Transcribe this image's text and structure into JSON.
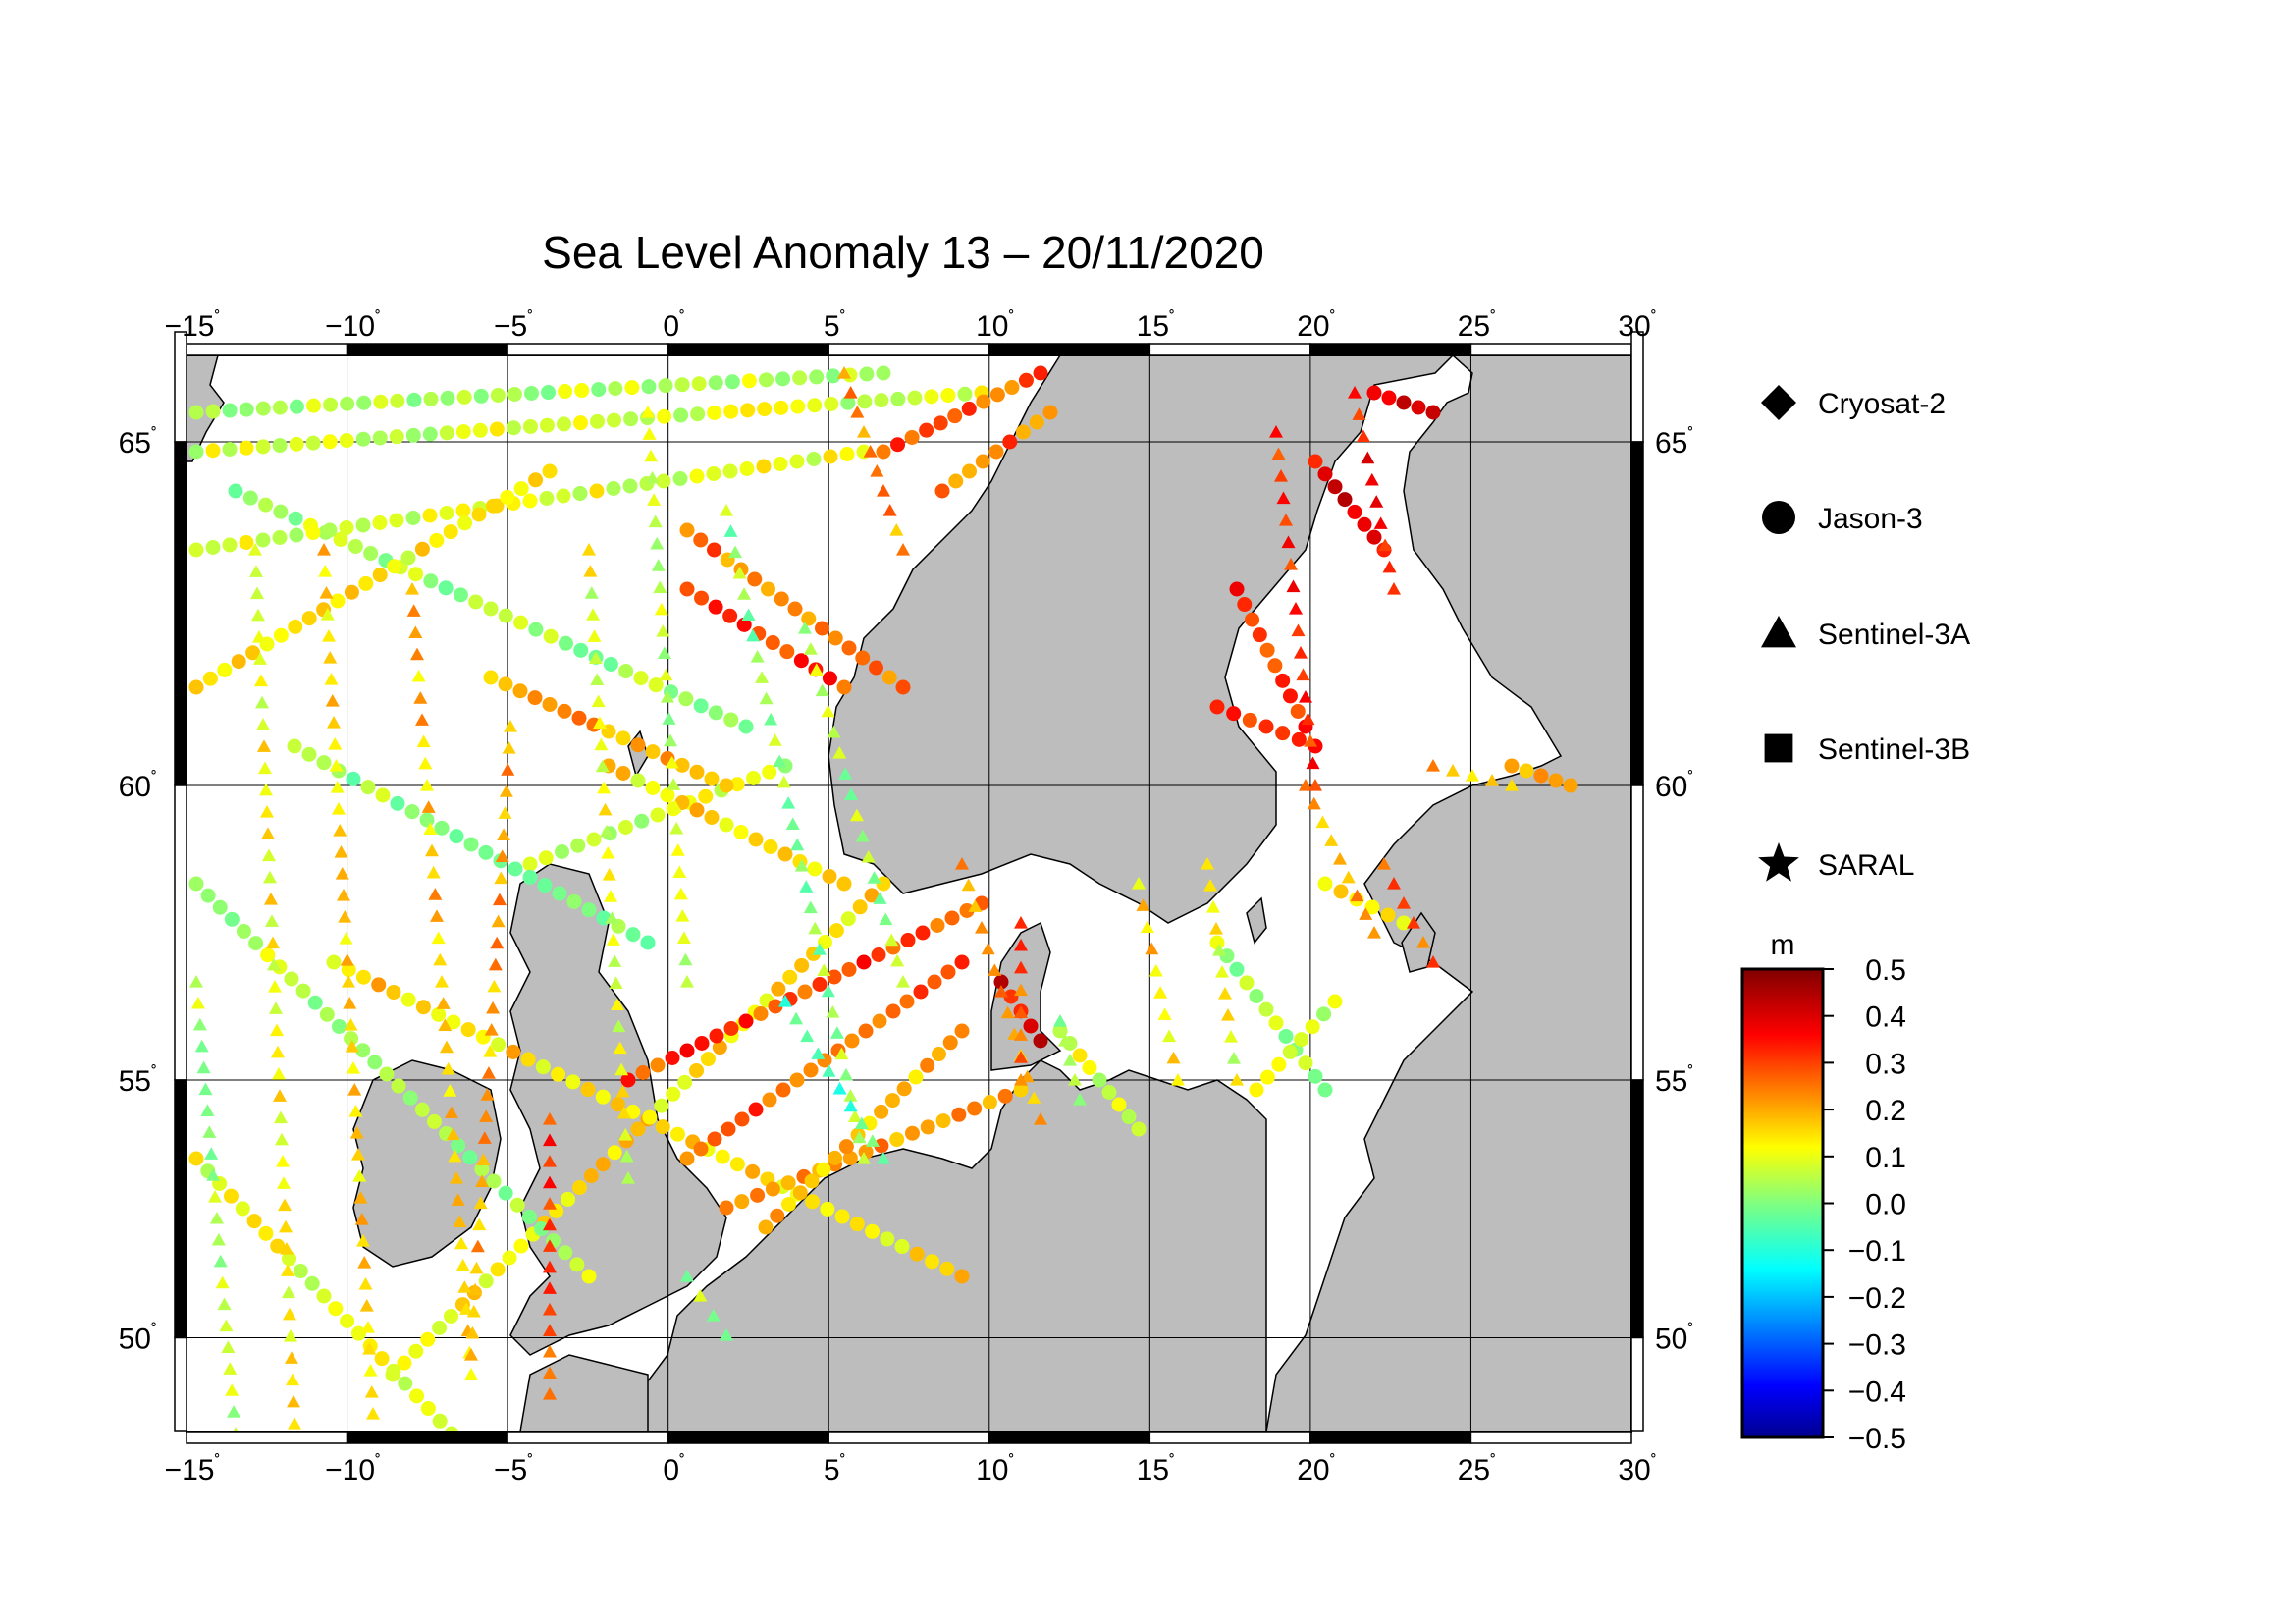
{
  "title": "Sea Level Anomaly 13 – 20/11/2020",
  "axes": {
    "lon_ticks": [
      {
        "value": -15,
        "label": "−15"
      },
      {
        "value": -10,
        "label": "−10"
      },
      {
        "value": -5,
        "label": "−5"
      },
      {
        "value": 0,
        "label": "0"
      },
      {
        "value": 5,
        "label": "5"
      },
      {
        "value": 10,
        "label": "10"
      },
      {
        "value": 15,
        "label": "15"
      },
      {
        "value": 20,
        "label": "20"
      },
      {
        "value": 25,
        "label": "25"
      },
      {
        "value": 30,
        "label": "30"
      }
    ],
    "lat_ticks": [
      {
        "value": 65,
        "label": "65"
      },
      {
        "value": 60,
        "label": "60"
      },
      {
        "value": 55,
        "label": "55"
      },
      {
        "value": 50,
        "label": "50"
      }
    ],
    "degree_symbol": "˚",
    "lon_range": [
      -15,
      30
    ],
    "lat_range": [
      48.2,
      66.6
    ],
    "grid": true
  },
  "legend": {
    "placement": "right",
    "items": [
      {
        "name": "Cryosat-2",
        "symbol": "diamond"
      },
      {
        "name": "Jason-3",
        "symbol": "circle"
      },
      {
        "name": "Sentinel-3A",
        "symbol": "triangle"
      },
      {
        "name": "Sentinel-3B",
        "symbol": "square"
      },
      {
        "name": "SARAL",
        "symbol": "star"
      }
    ]
  },
  "colorbar": {
    "unit": "m",
    "ticks": [
      "0.5",
      "0.4",
      "0.3",
      "0.2",
      "0.1",
      "0.0",
      "−0.1",
      "−0.2",
      "−0.3",
      "−0.4",
      "−0.5"
    ],
    "range": [
      -0.5,
      0.5
    ],
    "colormap": "jet"
  },
  "colors": {
    "land": "#bdbdbd",
    "ocean": "#ffffff",
    "coast": "#000000"
  }
}
